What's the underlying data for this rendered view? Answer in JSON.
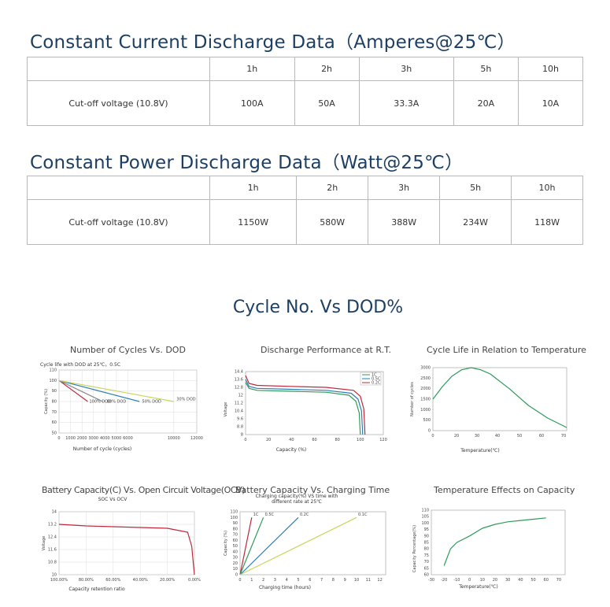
{
  "current_section": {
    "title": "Constant Current Discharge Data（Amperes@25℃）",
    "headers": [
      "1h",
      "2h",
      "3h",
      "5h",
      "10h"
    ],
    "row_label": "Cut-off voltage (10.8V)",
    "values": [
      "100A",
      "50A",
      "33.3A",
      "20A",
      "10A"
    ]
  },
  "power_section": {
    "title": "Constant Power Discharge Data（Watt@25℃）",
    "headers": [
      "1h",
      "2h",
      "3h",
      "5h",
      "10h"
    ],
    "row_label": "Cut-off voltage (10.8V)",
    "values": [
      "1150W",
      "580W",
      "388W",
      "234W",
      "118W"
    ]
  },
  "cycle_section": {
    "title": "Cycle No. Vs DOD%"
  },
  "colors": {
    "title_blue": "#1d3f63",
    "red": "#c0283a",
    "green": "#2e9a5a",
    "blue": "#2a7db5",
    "yellow": "#c9d55a",
    "grey": "#8a8a8a"
  },
  "chart_data": [
    {
      "type": "line",
      "title": "Number of Cycles Vs. DOD",
      "subtitle": "Cycle life with DOD at 25℃，0.5C",
      "xlabel": "Number of cycle (cycles)",
      "ylabel": "Capacity (%)",
      "xticks": [
        "0",
        "1000",
        "2000",
        "3000",
        "4000",
        "5000",
        "6000",
        "10000",
        "12000"
      ],
      "yticks": [
        "50",
        "60",
        "70",
        "80",
        "90",
        "100",
        "110"
      ],
      "xlim": [
        0,
        12000
      ],
      "ylim": [
        50,
        110
      ],
      "annotations": [
        "100% DOD",
        "80% DOD",
        "50% DOD",
        "30% DOD"
      ],
      "series": [
        {
          "color": "red",
          "x": [
            0,
            2500
          ],
          "y": [
            100,
            80
          ]
        },
        {
          "color": "grey",
          "x": [
            0,
            3800
          ],
          "y": [
            100,
            80
          ]
        },
        {
          "color": "blue",
          "x": [
            0,
            7000
          ],
          "y": [
            100,
            80
          ]
        },
        {
          "color": "yellow",
          "x": [
            0,
            10000
          ],
          "y": [
            100,
            80
          ]
        }
      ]
    },
    {
      "type": "line",
      "title": "Discharge Performance at R.T.",
      "xlabel": "Capacity (%)",
      "ylabel": "Voltage",
      "xticks": [
        "0",
        "20",
        "40",
        "60",
        "80",
        "100",
        "120"
      ],
      "yticks": [
        "8",
        "8.8",
        "9.6",
        "10.4",
        "11.2",
        "12",
        "12.8",
        "13.6",
        "14.4"
      ],
      "xlim": [
        0,
        120
      ],
      "ylim": [
        8,
        14.4
      ],
      "legend": [
        "1C",
        "0.5C",
        "0.2C"
      ],
      "series": [
        {
          "name": "1C",
          "color": "green",
          "x": [
            0,
            3,
            10,
            40,
            70,
            90,
            96,
            99,
            100
          ],
          "y": [
            13.3,
            12.7,
            12.5,
            12.4,
            12.3,
            12.0,
            11.4,
            10.2,
            8.0
          ]
        },
        {
          "name": "0.5C",
          "color": "blue",
          "x": [
            0,
            3,
            10,
            40,
            70,
            92,
            98,
            101,
            102
          ],
          "y": [
            13.6,
            12.9,
            12.7,
            12.6,
            12.5,
            12.2,
            11.6,
            10.4,
            8.0
          ]
        },
        {
          "name": "0.2C",
          "color": "red",
          "x": [
            0,
            3,
            10,
            40,
            70,
            94,
            100,
            103,
            104
          ],
          "y": [
            14.0,
            13.2,
            13.0,
            12.9,
            12.8,
            12.5,
            11.9,
            10.6,
            8.0
          ]
        }
      ]
    },
    {
      "type": "line",
      "title": "Cycle Life in Relation to Temperature",
      "xlabel": "Temperature(℃)",
      "ylabel": "Number of cycles",
      "xticks": [
        "0",
        "20",
        "30",
        "40",
        "50",
        "60",
        "70"
      ],
      "yticks": [
        "0",
        "500",
        "1000",
        "1500",
        "2000",
        "2500",
        "3000"
      ],
      "ylim": [
        0,
        3000
      ],
      "series": [
        {
          "color": "green",
          "x": [
            0,
            5,
            10,
            15,
            20,
            25,
            30,
            40,
            50,
            60,
            70
          ],
          "y": [
            1500,
            2100,
            2600,
            2900,
            3000,
            2900,
            2700,
            2000,
            1200,
            600,
            150
          ]
        }
      ]
    },
    {
      "type": "line",
      "title": "Battery Capacity(C) Vs. Open Circuit Voltage(OCV)",
      "subtitle": "SOC Vs OCV",
      "xlabel": "Capacity retention ratio",
      "ylabel": "Voltage",
      "xticks": [
        "100.00%",
        "80.00%",
        "60.00%",
        "40.00%",
        "20.00%",
        "0.00%"
      ],
      "yticks": [
        "10",
        "10.8",
        "11.6",
        "12.4",
        "13.2",
        "14"
      ],
      "ylim": [
        10,
        14
      ],
      "series": [
        {
          "color": "red",
          "x": [
            100,
            80,
            60,
            40,
            20,
            5,
            2,
            0
          ],
          "y": [
            13.2,
            13.1,
            13.05,
            13.0,
            12.95,
            12.7,
            11.8,
            10.0
          ]
        }
      ]
    },
    {
      "type": "line",
      "title": "Battery Capacity Vs. Charging Time",
      "subtitle": "Charging capacity(%) VS time with different rate at 25℃",
      "xlabel": "Charging time (hours)",
      "ylabel": "Capacity (%)",
      "xticks": [
        "0",
        "1",
        "2",
        "3",
        "4",
        "5",
        "6",
        "7",
        "8",
        "9",
        "10",
        "11",
        "12"
      ],
      "yticks": [
        "0",
        "10",
        "20",
        "30",
        "40",
        "50",
        "60",
        "70",
        "80",
        "90",
        "100",
        "110"
      ],
      "ylim": [
        0,
        110
      ],
      "annotations": [
        "1C",
        "0.5C",
        "0.2C",
        "0.1C"
      ],
      "series": [
        {
          "name": "1C",
          "color": "red",
          "x": [
            0,
            1
          ],
          "y": [
            0,
            100
          ]
        },
        {
          "name": "0.5C",
          "color": "green",
          "x": [
            0,
            2
          ],
          "y": [
            0,
            100
          ]
        },
        {
          "name": "0.2C",
          "color": "blue",
          "x": [
            0,
            5
          ],
          "y": [
            0,
            100
          ]
        },
        {
          "name": "0.1C",
          "color": "yellow",
          "x": [
            0,
            10
          ],
          "y": [
            0,
            100
          ]
        }
      ]
    },
    {
      "type": "line",
      "title": "Temperature Effects on Capacity",
      "xlabel": "Temperature(℃)",
      "ylabel": "Capacity Percentage(%)",
      "xticks": [
        "-30",
        "-20",
        "-10",
        "0",
        "10",
        "20",
        "30",
        "40",
        "50",
        "60",
        "70"
      ],
      "yticks": [
        "60",
        "65",
        "70",
        "75",
        "80",
        "85",
        "90",
        "95",
        "100",
        "105",
        "110"
      ],
      "ylim": [
        60,
        110
      ],
      "series": [
        {
          "color": "green",
          "x": [
            -20,
            -15,
            -10,
            0,
            10,
            20,
            30,
            40,
            50,
            60
          ],
          "y": [
            67,
            80,
            85,
            90,
            96,
            99,
            101,
            102,
            103,
            104
          ]
        }
      ]
    }
  ]
}
